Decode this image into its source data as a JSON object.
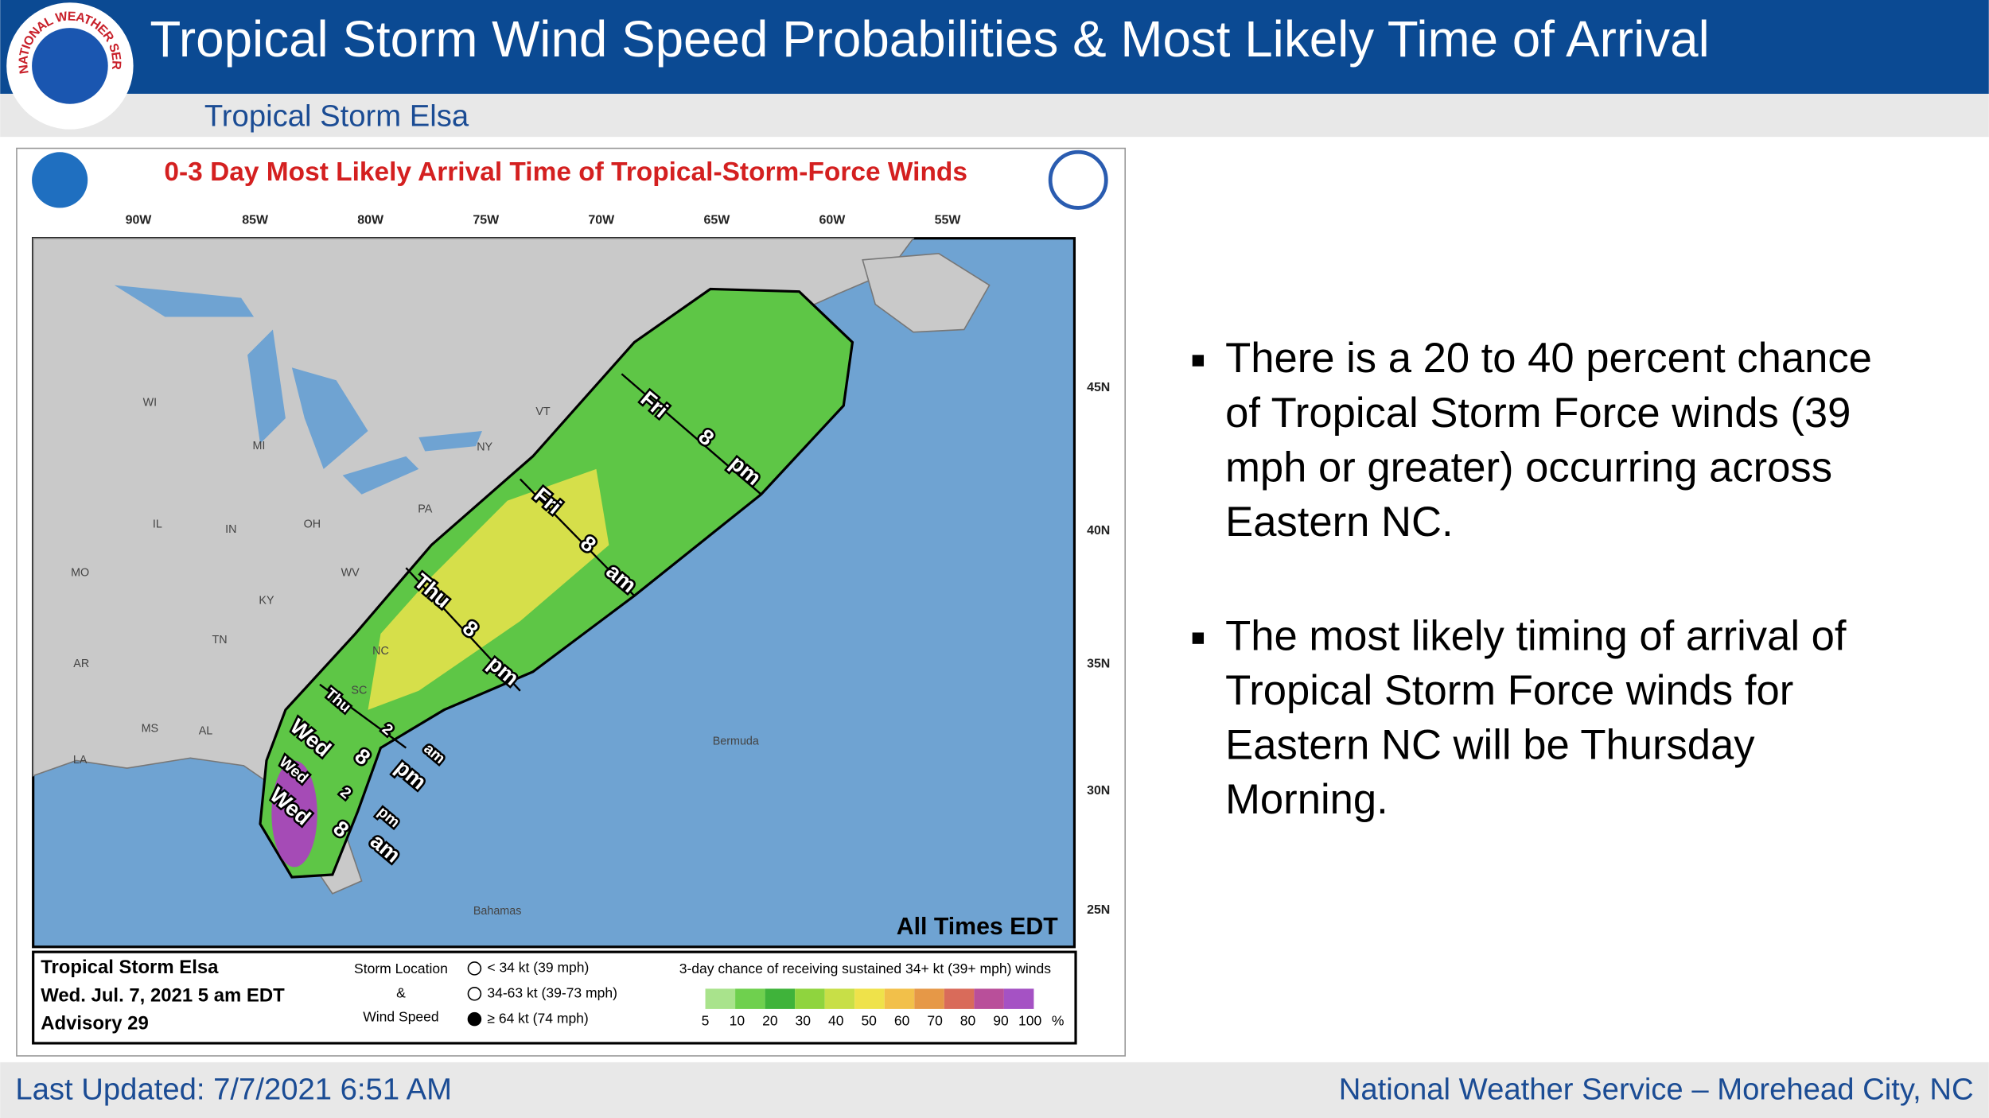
{
  "header": {
    "title": "Tropical Storm Wind Speed Probabilities & Most Likely Time of Arrival",
    "subtitle": "Tropical Storm Elsa",
    "logo_text": "NATIONAL WEATHER SERVICE"
  },
  "map": {
    "title": "0-3 Day Most Likely Arrival Time of Tropical-Storm-Force Winds",
    "longitudes": [
      "90W",
      "85W",
      "80W",
      "75W",
      "70W",
      "65W",
      "60W",
      "55W"
    ],
    "latitudes": [
      "45N",
      "40N",
      "35N",
      "30N",
      "25N"
    ],
    "states": [
      "WI",
      "MI",
      "NY",
      "VT",
      "PA",
      "OH",
      "IN",
      "IL",
      "MO",
      "KY",
      "WV",
      "TN",
      "NC",
      "SC",
      "AR",
      "MS",
      "AL",
      "LA"
    ],
    "places": [
      "Bermuda",
      "Bahamas"
    ],
    "time_labels": [
      [
        "Fri",
        "8",
        "pm"
      ],
      [
        "Fri",
        "8",
        "am"
      ],
      [
        "Thu",
        "8",
        "pm"
      ],
      [
        "Thu",
        "2",
        "am"
      ],
      [
        "Wed",
        "8",
        "pm"
      ],
      [
        "Wed",
        "2",
        "pm"
      ],
      [
        "Wed",
        "8",
        "am"
      ]
    ],
    "note": "All Times EDT",
    "legend": {
      "storm": [
        "Tropical Storm Elsa",
        "Wed. Jul. 7, 2021  5 am EDT",
        "Advisory 29"
      ],
      "symbol_heading": [
        "Storm Location",
        "&",
        "Wind Speed"
      ],
      "symbols": [
        "< 34 kt (39 mph)",
        "34-63 kt (39-73 mph)",
        "≥ 64 kt (74 mph)"
      ],
      "scale_title": "3-day chance of receiving sustained 34+ kt (39+ mph) winds",
      "scale_labels": [
        "5",
        "10",
        "20",
        "30",
        "40",
        "50",
        "60",
        "70",
        "80",
        "90",
        "100",
        "%"
      ],
      "scale_colors": [
        "#a9e38c",
        "#6fd04e",
        "#3fb33a",
        "#8fd43e",
        "#c8df47",
        "#efe24a",
        "#f2c04a",
        "#e69847",
        "#d96b5a",
        "#b94f9a",
        "#a552c4"
      ]
    }
  },
  "bullets": [
    [
      "There is a 20 to 40 percent chance",
      "of Tropical Storm Force winds (39",
      "mph or greater) occurring across",
      "Eastern NC."
    ],
    [
      "The most likely timing of arrival of",
      "Tropical Storm Force winds for",
      "Eastern NC will be Thursday",
      "Morning."
    ]
  ],
  "footer": {
    "updated": "Last Updated:  7/7/2021 6:51 AM",
    "office": "National Weather Service – Morehead City, NC"
  }
}
